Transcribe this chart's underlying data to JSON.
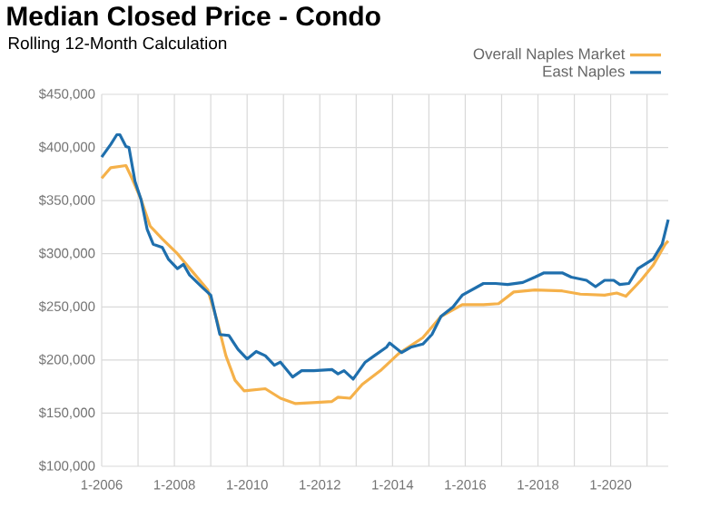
{
  "chart_data": {
    "type": "line",
    "title": "Median Closed Price - Condo",
    "subtitle": "Rolling 12-Month Calculation",
    "x": [
      "2006-01",
      "2006-04",
      "2006-06",
      "2006-07",
      "2006-09",
      "2006-10",
      "2006-12",
      "2007-02",
      "2007-04",
      "2007-06",
      "2007-09",
      "2007-11",
      "2008-02",
      "2008-04",
      "2008-06",
      "2008-10",
      "2009-01",
      "2009-04",
      "2009-07",
      "2009-10",
      "2010-01",
      "2010-04",
      "2010-07",
      "2010-10",
      "2010-12",
      "2011-04",
      "2011-07",
      "2011-11",
      "2012-05",
      "2012-07",
      "2012-09",
      "2012-12",
      "2013-04",
      "2013-07",
      "2013-11",
      "2013-12",
      "2014-04",
      "2014-07",
      "2014-11",
      "2015-02",
      "2015-05",
      "2015-09",
      "2015-12",
      "2016-07",
      "2016-11",
      "2017-03",
      "2017-08",
      "2017-12",
      "2018-03",
      "2018-09",
      "2018-12",
      "2019-05",
      "2019-08",
      "2019-11",
      "2020-02",
      "2020-04",
      "2020-07",
      "2020-10",
      "2021-03",
      "2021-06",
      "2021-08"
    ],
    "series": [
      {
        "name": "Overall Naples Market",
        "color": "#f5b14a",
        "x": [
          "2006-01",
          "2006-04",
          "2006-09",
          "2006-11",
          "2007-02",
          "2007-05",
          "2007-09",
          "2008-02",
          "2008-07",
          "2008-12",
          "2009-03",
          "2009-06",
          "2009-09",
          "2009-12",
          "2010-07",
          "2010-12",
          "2011-05",
          "2011-12",
          "2012-05",
          "2012-07",
          "2012-11",
          "2013-03",
          "2013-09",
          "2014-03",
          "2014-11",
          "2015-05",
          "2015-12",
          "2016-07",
          "2016-12",
          "2017-05",
          "2017-12",
          "2018-09",
          "2019-03",
          "2019-11",
          "2020-03",
          "2020-06",
          "2020-11",
          "2021-03",
          "2021-07",
          "2021-08"
        ],
        "values": [
          371000,
          381000,
          383000,
          371000,
          351000,
          326000,
          314000,
          300000,
          283000,
          266000,
          238000,
          204000,
          181000,
          171000,
          173000,
          164000,
          159000,
          160000,
          161000,
          165000,
          164000,
          177000,
          190000,
          206000,
          221000,
          241000,
          252000,
          252000,
          253000,
          264000,
          266000,
          265000,
          262000,
          261000,
          263000,
          260000,
          275000,
          289000,
          309000,
          312000
        ]
      },
      {
        "name": "East Naples",
        "color": "#1f6fad",
        "values": [
          391000,
          403000,
          412000,
          412000,
          401000,
          400000,
          368000,
          351000,
          323000,
          309000,
          306000,
          295000,
          286000,
          290000,
          280000,
          269000,
          261000,
          224000,
          223000,
          210000,
          201000,
          208000,
          204000,
          195000,
          198000,
          184000,
          190000,
          190000,
          191000,
          187000,
          190000,
          182000,
          198000,
          204000,
          212000,
          216000,
          207000,
          212000,
          215000,
          224000,
          241000,
          250000,
          261000,
          272000,
          272000,
          271000,
          273000,
          278000,
          282000,
          282000,
          278000,
          275000,
          269000,
          275000,
          275000,
          271000,
          272000,
          286000,
          295000,
          309000,
          332000
        ]
      }
    ],
    "xlim": [
      "2006-01",
      "2021-08"
    ],
    "xticks": [
      {
        "value": "2006-01",
        "label": "1-2006"
      },
      {
        "value": "2007-01",
        "label": null
      },
      {
        "value": "2008-01",
        "label": "1-2008"
      },
      {
        "value": "2009-01",
        "label": null
      },
      {
        "value": "2010-01",
        "label": "1-2010"
      },
      {
        "value": "2011-01",
        "label": null
      },
      {
        "value": "2012-01",
        "label": "1-2012"
      },
      {
        "value": "2013-01",
        "label": null
      },
      {
        "value": "2014-01",
        "label": "1-2014"
      },
      {
        "value": "2015-01",
        "label": null
      },
      {
        "value": "2016-01",
        "label": "1-2016"
      },
      {
        "value": "2017-01",
        "label": null
      },
      {
        "value": "2018-01",
        "label": "1-2018"
      },
      {
        "value": "2019-01",
        "label": null
      },
      {
        "value": "2020-01",
        "label": "1-2020"
      },
      {
        "value": "2021-01",
        "label": null
      }
    ],
    "ylim": [
      100000,
      450000
    ],
    "yticks": [
      {
        "value": 100000,
        "label": "$100,000"
      },
      {
        "value": 150000,
        "label": "$150,000"
      },
      {
        "value": 200000,
        "label": "$200,000"
      },
      {
        "value": 250000,
        "label": "$250,000"
      },
      {
        "value": 300000,
        "label": "$300,000"
      },
      {
        "value": 350000,
        "label": "$350,000"
      },
      {
        "value": 400000,
        "label": "$400,000"
      },
      {
        "value": 450000,
        "label": "$450,000"
      }
    ],
    "grid": true,
    "legend": "top right",
    "marker": "none",
    "line_style": "solid"
  }
}
